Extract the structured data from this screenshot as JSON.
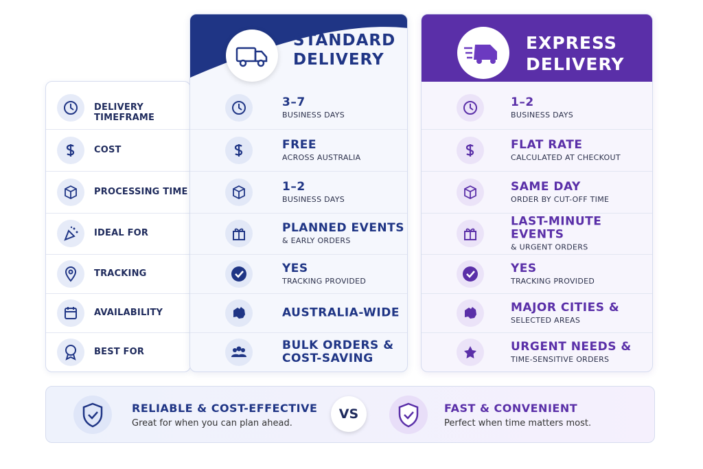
{
  "columns": {
    "features": [
      "DELIVERY TIMEFRAME",
      "COST",
      "PROCESSING TIME",
      "IDEAL FOR",
      "TRACKING",
      "AVAILABILITY",
      "BEST FOR"
    ],
    "standard": {
      "title": "STANDARD DELIVERY",
      "rows": [
        {
          "main": "3–7",
          "sub": "BUSINESS DAYS"
        },
        {
          "main": "FREE",
          "sub": "ACROSS AUSTRALIA"
        },
        {
          "main": "1–2",
          "sub": "BUSINESS DAYS"
        },
        {
          "main": "PLANNED EVENTS",
          "sub": "& EARLY ORDERS"
        },
        {
          "main": "YES",
          "sub": "TRACKING PROVIDED"
        },
        {
          "main": "AUSTRALIA-WIDE"
        },
        {
          "main": "BULK ORDERS & COST-SAVING"
        }
      ]
    },
    "express": {
      "title": "EXPRESS DELIVERY",
      "rows": [
        {
          "main": "1–2",
          "sub": "BUSINESS DAYS"
        },
        {
          "main": "FLAT RATE",
          "sub": "CALCULATED AT CHECKOUT"
        },
        {
          "main": "SAME DAY",
          "sub": "ORDER BY CUT-OFF TIME"
        },
        {
          "main": "LAST-MINUTE EVENTS",
          "sub": "& URGENT ORDERS"
        },
        {
          "main": "YES",
          "sub": "TRACKING PROVIDED"
        },
        {
          "main": "MAJOR CITIES &",
          "sub": "SELECTED AREAS"
        },
        {
          "main": "URGENT NEEDS &",
          "sub": "TIME-SENSITIVE ORDERS"
        }
      ]
    }
  },
  "footer": {
    "left": {
      "title": "RELIABLE & COST-EFFECTIVE",
      "text": "Great for when you can plan ahead."
    },
    "vs": "VS",
    "right": {
      "title": "FAST & CONVENIENT",
      "text": "Perfect when time matters most."
    }
  }
}
